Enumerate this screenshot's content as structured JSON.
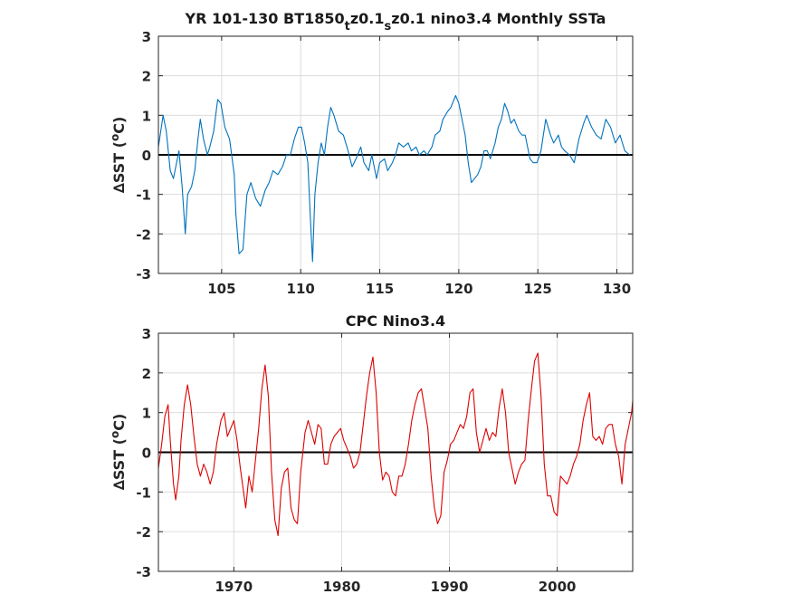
{
  "chart_data": [
    {
      "type": "line",
      "title": "YR 101-130 BT1850_t z0.1_s z0.1 nino3.4 Monthly SSTa",
      "title_parts": {
        "a": "YR 101-130 BT1850",
        "b": "t",
        "c": "z0.1",
        "d": "s",
        "e": "z0.1 nino3.4 Monthly SSTa"
      },
      "ylabel": "∆SST (°C)",
      "ylabel_parts": {
        "pre": "∆SST (",
        "deg": "o",
        "post": "C)"
      },
      "xlim": [
        101,
        131
      ],
      "ylim": [
        -3,
        3
      ],
      "xticks": [
        "105",
        "110",
        "115",
        "120",
        "125",
        "130"
      ],
      "xtick_values": [
        105,
        110,
        115,
        120,
        125,
        130
      ],
      "yticks": [
        "-3",
        "-2",
        "-1",
        "0",
        "1",
        "2",
        "3"
      ],
      "grid": true,
      "zero_line": true,
      "series": [
        {
          "color": "#0072bd",
          "x": [
            101.0,
            101.3,
            101.5,
            101.75,
            101.95,
            102.15,
            102.3,
            102.5,
            102.7,
            102.85,
            103.1,
            103.3,
            103.5,
            103.65,
            103.85,
            104.1,
            104.25,
            104.5,
            104.75,
            104.95,
            105.2,
            105.5,
            105.8,
            105.9,
            106.1,
            106.35,
            106.6,
            106.85,
            107.15,
            107.45,
            107.75,
            108.0,
            108.25,
            108.55,
            108.85,
            109.1,
            109.35,
            109.6,
            109.85,
            110.05,
            110.25,
            110.45,
            110.6,
            110.75,
            110.9,
            111.1,
            111.3,
            111.5,
            111.7,
            111.9,
            112.1,
            112.4,
            112.7,
            113.0,
            113.25,
            113.5,
            113.8,
            114.0,
            114.3,
            114.5,
            114.8,
            115.0,
            115.3,
            115.5,
            115.8,
            116.0,
            116.2,
            116.5,
            116.8,
            117.0,
            117.3,
            117.5,
            117.8,
            118.0,
            118.3,
            118.5,
            118.8,
            119.0,
            119.3,
            119.5,
            119.8,
            120.0,
            120.2,
            120.4,
            120.6,
            120.8,
            121.0,
            121.2,
            121.4,
            121.6,
            121.8,
            122.0,
            122.3,
            122.5,
            122.7,
            122.9,
            123.1,
            123.3,
            123.5,
            123.8,
            124.0,
            124.2,
            124.5,
            124.7,
            124.95,
            125.2,
            125.5,
            125.8,
            126.0,
            126.3,
            126.5,
            126.7,
            127.0,
            127.3,
            127.6,
            127.9,
            128.1,
            128.4,
            128.7,
            129.0,
            129.3,
            129.6,
            129.9,
            130.2,
            130.5,
            130.8
          ],
          "values": [
            0.2,
            1.0,
            0.6,
            -0.4,
            -0.6,
            -0.2,
            0.1,
            -0.8,
            -2.0,
            -1.0,
            -0.8,
            -0.4,
            0.4,
            0.9,
            0.4,
            0.0,
            0.2,
            0.6,
            1.4,
            1.3,
            0.7,
            0.4,
            -0.5,
            -1.5,
            -2.5,
            -2.4,
            -1.0,
            -0.7,
            -1.1,
            -1.3,
            -0.9,
            -0.7,
            -0.4,
            -0.5,
            -0.3,
            0.0,
            0.0,
            0.4,
            0.7,
            0.7,
            0.3,
            -0.2,
            -1.5,
            -2.7,
            -1.0,
            -0.2,
            0.3,
            0.0,
            0.7,
            1.2,
            1.0,
            0.6,
            0.5,
            0.1,
            -0.3,
            -0.1,
            0.2,
            -0.2,
            -0.4,
            0.0,
            -0.6,
            -0.2,
            -0.1,
            -0.4,
            -0.2,
            0.0,
            0.3,
            0.2,
            0.3,
            0.1,
            0.2,
            0.0,
            0.1,
            0.0,
            0.2,
            0.5,
            0.6,
            0.9,
            1.1,
            1.2,
            1.5,
            1.3,
            0.9,
            0.5,
            -0.2,
            -0.7,
            -0.6,
            -0.5,
            -0.3,
            0.1,
            0.1,
            -0.1,
            0.3,
            0.7,
            0.9,
            1.3,
            1.1,
            0.8,
            0.9,
            0.6,
            0.5,
            0.5,
            -0.1,
            -0.2,
            -0.2,
            0.1,
            0.9,
            0.5,
            0.3,
            0.5,
            0.2,
            0.1,
            0.0,
            -0.2,
            0.4,
            0.8,
            1.0,
            0.7,
            0.5,
            0.4,
            0.9,
            0.7,
            0.3,
            0.5,
            0.1,
            0.0
          ]
        }
      ]
    },
    {
      "type": "line",
      "title": "CPC Nino3.4",
      "ylabel": "∆SST (°C)",
      "ylabel_parts": {
        "pre": "∆SST (",
        "deg": "o",
        "post": "C)"
      },
      "xlim": [
        1963,
        2007
      ],
      "ylim": [
        -3,
        3
      ],
      "xticks": [
        "1970",
        "1980",
        "1990",
        "2000"
      ],
      "xtick_values": [
        1970,
        1980,
        1990,
        2000
      ],
      "yticks": [
        "-3",
        "-2",
        "-1",
        "0",
        "1",
        "2",
        "3"
      ],
      "grid": true,
      "zero_line": true,
      "series": [
        {
          "color": "#dd0000",
          "x": [
            1963.0,
            1963.3,
            1963.6,
            1963.9,
            1964.1,
            1964.4,
            1964.6,
            1964.9,
            1965.1,
            1965.4,
            1965.7,
            1966.0,
            1966.3,
            1966.6,
            1966.9,
            1967.2,
            1967.5,
            1967.8,
            1968.1,
            1968.4,
            1968.8,
            1969.1,
            1969.4,
            1969.7,
            1970.0,
            1970.3,
            1970.6,
            1970.9,
            1971.1,
            1971.4,
            1971.7,
            1972.0,
            1972.3,
            1972.6,
            1972.9,
            1973.2,
            1973.5,
            1973.8,
            1974.1,
            1974.4,
            1974.7,
            1975.0,
            1975.3,
            1975.6,
            1975.9,
            1976.2,
            1976.6,
            1976.9,
            1977.2,
            1977.5,
            1977.8,
            1978.1,
            1978.4,
            1978.7,
            1979.0,
            1979.3,
            1979.6,
            1979.9,
            1980.2,
            1980.5,
            1980.8,
            1981.1,
            1981.4,
            1981.7,
            1982.0,
            1982.3,
            1982.6,
            1982.9,
            1983.2,
            1983.5,
            1983.8,
            1984.1,
            1984.4,
            1984.7,
            1985.0,
            1985.3,
            1985.6,
            1985.9,
            1986.2,
            1986.5,
            1986.8,
            1987.1,
            1987.4,
            1987.7,
            1988.0,
            1988.3,
            1988.6,
            1988.9,
            1989.2,
            1989.5,
            1989.8,
            1990.1,
            1990.4,
            1990.7,
            1991.0,
            1991.3,
            1991.6,
            1991.9,
            1992.2,
            1992.5,
            1992.8,
            1993.1,
            1993.4,
            1993.7,
            1994.0,
            1994.3,
            1994.6,
            1994.9,
            1995.2,
            1995.5,
            1995.8,
            1996.1,
            1996.4,
            1996.7,
            1997.0,
            1997.3,
            1997.6,
            1997.9,
            1998.2,
            1998.5,
            1998.8,
            1999.1,
            1999.4,
            1999.7,
            2000.0,
            2000.3,
            2000.6,
            2000.9,
            2001.2,
            2001.5,
            2001.8,
            2002.1,
            2002.4,
            2002.7,
            2003.0,
            2003.3,
            2003.6,
            2003.9,
            2004.2,
            2004.5,
            2004.8,
            2005.1,
            2005.4,
            2005.7,
            2006.0,
            2006.3,
            2006.6,
            2006.9,
            2007.0
          ],
          "values": [
            -0.4,
            0.2,
            0.9,
            1.2,
            0.3,
            -0.8,
            -1.2,
            -0.6,
            0.3,
            1.2,
            1.7,
            1.2,
            0.4,
            -0.3,
            -0.6,
            -0.3,
            -0.5,
            -0.8,
            -0.5,
            0.2,
            0.8,
            1.0,
            0.4,
            0.6,
            0.8,
            0.3,
            -0.4,
            -1.0,
            -1.4,
            -0.6,
            -1.0,
            -0.2,
            0.6,
            1.6,
            2.2,
            1.4,
            -0.5,
            -1.7,
            -2.1,
            -0.9,
            -0.5,
            -0.4,
            -1.4,
            -1.7,
            -1.8,
            -0.5,
            0.5,
            0.8,
            0.5,
            0.2,
            0.7,
            0.6,
            -0.3,
            -0.3,
            0.2,
            0.4,
            0.5,
            0.6,
            0.3,
            0.1,
            -0.1,
            -0.4,
            -0.3,
            0.0,
            0.7,
            1.4,
            2.0,
            2.4,
            1.5,
            0.0,
            -0.7,
            -0.5,
            -0.6,
            -1.0,
            -1.1,
            -0.6,
            -0.6,
            -0.3,
            0.2,
            0.8,
            1.2,
            1.5,
            1.6,
            1.1,
            0.6,
            -0.6,
            -1.4,
            -1.8,
            -1.6,
            -0.5,
            -0.2,
            0.2,
            0.3,
            0.5,
            0.7,
            0.6,
            0.9,
            1.5,
            1.6,
            0.5,
            0.0,
            0.3,
            0.6,
            0.3,
            0.5,
            0.4,
            1.1,
            1.6,
            1.0,
            0.0,
            -0.4,
            -0.8,
            -0.5,
            -0.3,
            -0.2,
            0.8,
            1.6,
            2.3,
            2.5,
            1.4,
            -0.3,
            -1.1,
            -1.1,
            -1.5,
            -1.6,
            -0.6,
            -0.7,
            -0.8,
            -0.6,
            -0.3,
            -0.1,
            0.2,
            0.8,
            1.2,
            1.5,
            0.4,
            0.3,
            0.4,
            0.2,
            0.6,
            0.7,
            0.7,
            0.2,
            -0.1,
            -0.8,
            0.2,
            0.6,
            1.0,
            1.3
          ]
        }
      ]
    }
  ]
}
